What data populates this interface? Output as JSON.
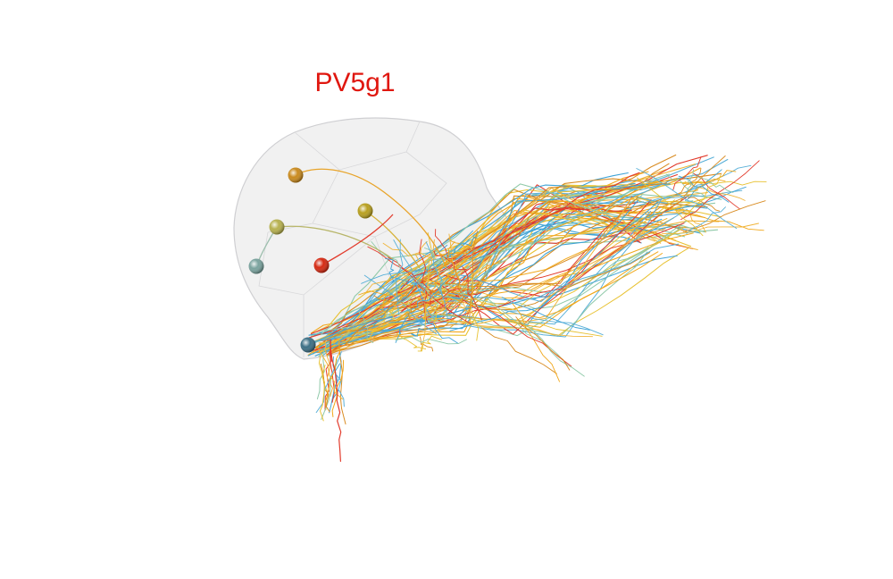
{
  "title": "PV5g1",
  "colors": {
    "title": "#e0170f",
    "hull_fill": "#e9e9ea",
    "hull_stroke": "#cfcfd2",
    "neurite_palette": [
      "#f1a81c",
      "#e8c233",
      "#3fa3d6",
      "#e23b2c",
      "#8fc9a8",
      "#d98c22",
      "#5ab0d8",
      "#f0b53a"
    ],
    "soma_colors": [
      "#c98a1e",
      "#b8a020",
      "#b7b14e",
      "#7aa39e",
      "#d52a13",
      "#3c6f85"
    ]
  },
  "icons": {
    "neuron_hull": "translucent-neuropil-hull",
    "soma": "cell-body-sphere"
  }
}
